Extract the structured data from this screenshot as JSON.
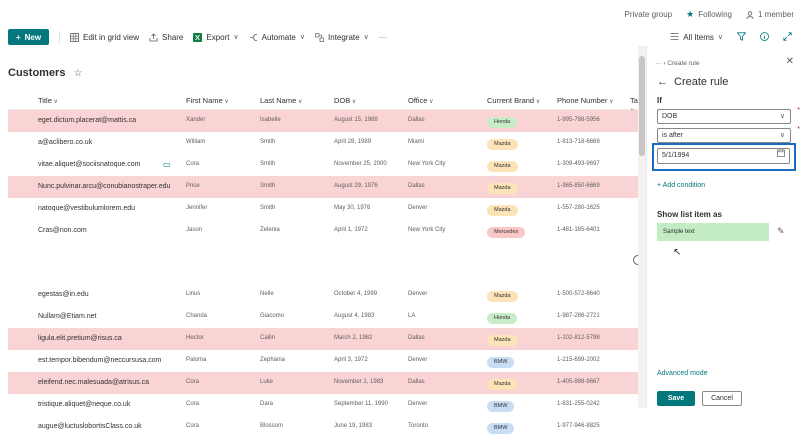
{
  "topbar": {
    "group_privacy": "Private group",
    "following": "Following",
    "members": "1 member"
  },
  "cmdbar": {
    "new_label": "New",
    "edit_grid": "Edit in grid view",
    "share": "Share",
    "export": "Export",
    "automate": "Automate",
    "integrate": "Integrate",
    "more": "···",
    "view": "All Items"
  },
  "list": {
    "title": "Customers",
    "columns": [
      "Title",
      "First Name",
      "Last Name",
      "DOB",
      "Office",
      "Current Brand",
      "Phone Number",
      "Ta"
    ],
    "rows": [
      {
        "title": "eget.dictum.placerat@mattis.ca",
        "first": "Xander",
        "last": "Isabelle",
        "dob": "August 15, 1988",
        "office": "Dallas",
        "brand": "Honda",
        "phone": "1-995-788-5956",
        "highlight": true
      },
      {
        "title": "a@aclibero.co.uk",
        "first": "William",
        "last": "Smith",
        "dob": "April 28, 1989",
        "office": "Miami",
        "brand": "Mazda",
        "phone": "1-813-718-6669",
        "highlight": false
      },
      {
        "title": "vitae.aliquet@sociisnatoque.com",
        "first": "Cora",
        "last": "Smith",
        "dob": "November 25, 2000",
        "office": "New York City",
        "brand": "Mazda",
        "phone": "1-309-493-9697",
        "highlight": false
      },
      {
        "title": "Nunc.pulvinar.arcu@conubianostraper.edu",
        "first": "Price",
        "last": "Smith",
        "dob": "August 29, 1976",
        "office": "Dallas",
        "brand": "Mazda",
        "phone": "1-965-850-6669",
        "highlight": true
      },
      {
        "title": "natoque@vestibulumlorem.edu",
        "first": "Jennifer",
        "last": "Smith",
        "dob": "May 30, 1976",
        "office": "Denver",
        "brand": "Mazda",
        "phone": "1-557-280-1625",
        "highlight": false
      },
      {
        "title": "Cras@non.com",
        "first": "Jason",
        "last": "Zelenia",
        "dob": "April 1, 1972",
        "office": "New York City",
        "brand": "Mercedes",
        "phone": "1-481-185-6401",
        "highlight": false
      },
      {
        "title": "egestas@in.edu",
        "first": "Linus",
        "last": "Nelle",
        "dob": "October 4, 1999",
        "office": "Denver",
        "brand": "Mazda",
        "phone": "1-500-572-8640",
        "highlight": false
      },
      {
        "title": "Nullam@Etiam.net",
        "first": "Chanda",
        "last": "Giacomo",
        "dob": "August 4, 1983",
        "office": "LA",
        "brand": "Honda",
        "phone": "1-987-286-2721",
        "highlight": false
      },
      {
        "title": "ligula.elit.pretium@risus.ca",
        "first": "Hector",
        "last": "Cailin",
        "dob": "March 2, 1982",
        "office": "Dallas",
        "brand": "Mazda",
        "phone": "1-102-812-5798",
        "highlight": true
      },
      {
        "title": "est.tempor.bibendum@neccursusa.com",
        "first": "Paloma",
        "last": "Zephania",
        "dob": "April 3, 1972",
        "office": "Denver",
        "brand": "BMW",
        "phone": "1-215-699-2002",
        "highlight": false
      },
      {
        "title": "eleifend.nec.malesuada@atrisus.ca",
        "first": "Cora",
        "last": "Luke",
        "dob": "November 2, 1983",
        "office": "Dallas",
        "brand": "Mazda",
        "phone": "1-405-998-9667",
        "highlight": true
      },
      {
        "title": "tristique.aliquet@neque.co.uk",
        "first": "Cora",
        "last": "Dara",
        "dob": "September 11, 1990",
        "office": "Denver",
        "brand": "BMW",
        "phone": "1-831-255-0242",
        "highlight": false
      },
      {
        "title": "augue@luctuslobortisClass.co.uk",
        "first": "Cora",
        "last": "Blossom",
        "dob": "June 19, 1983",
        "office": "Toronto",
        "brand": "BMW",
        "phone": "1-977-946-8825",
        "highlight": false
      }
    ]
  },
  "panel": {
    "breadcrumb": "Create rule",
    "title": "Create rule",
    "if_label": "If",
    "field_value": "DOB",
    "operator_value": "is after",
    "date_value": "5/1/1994",
    "add_condition": "+ Add condition",
    "show_as_label": "Show list item as",
    "sample_text": "Sample text",
    "advanced_mode": "Advanced mode",
    "save": "Save",
    "cancel": "Cancel"
  },
  "colors": {
    "accent": "#03787c",
    "highlight_row": "#fad4d4",
    "focus_border": "#1a6cbf"
  }
}
